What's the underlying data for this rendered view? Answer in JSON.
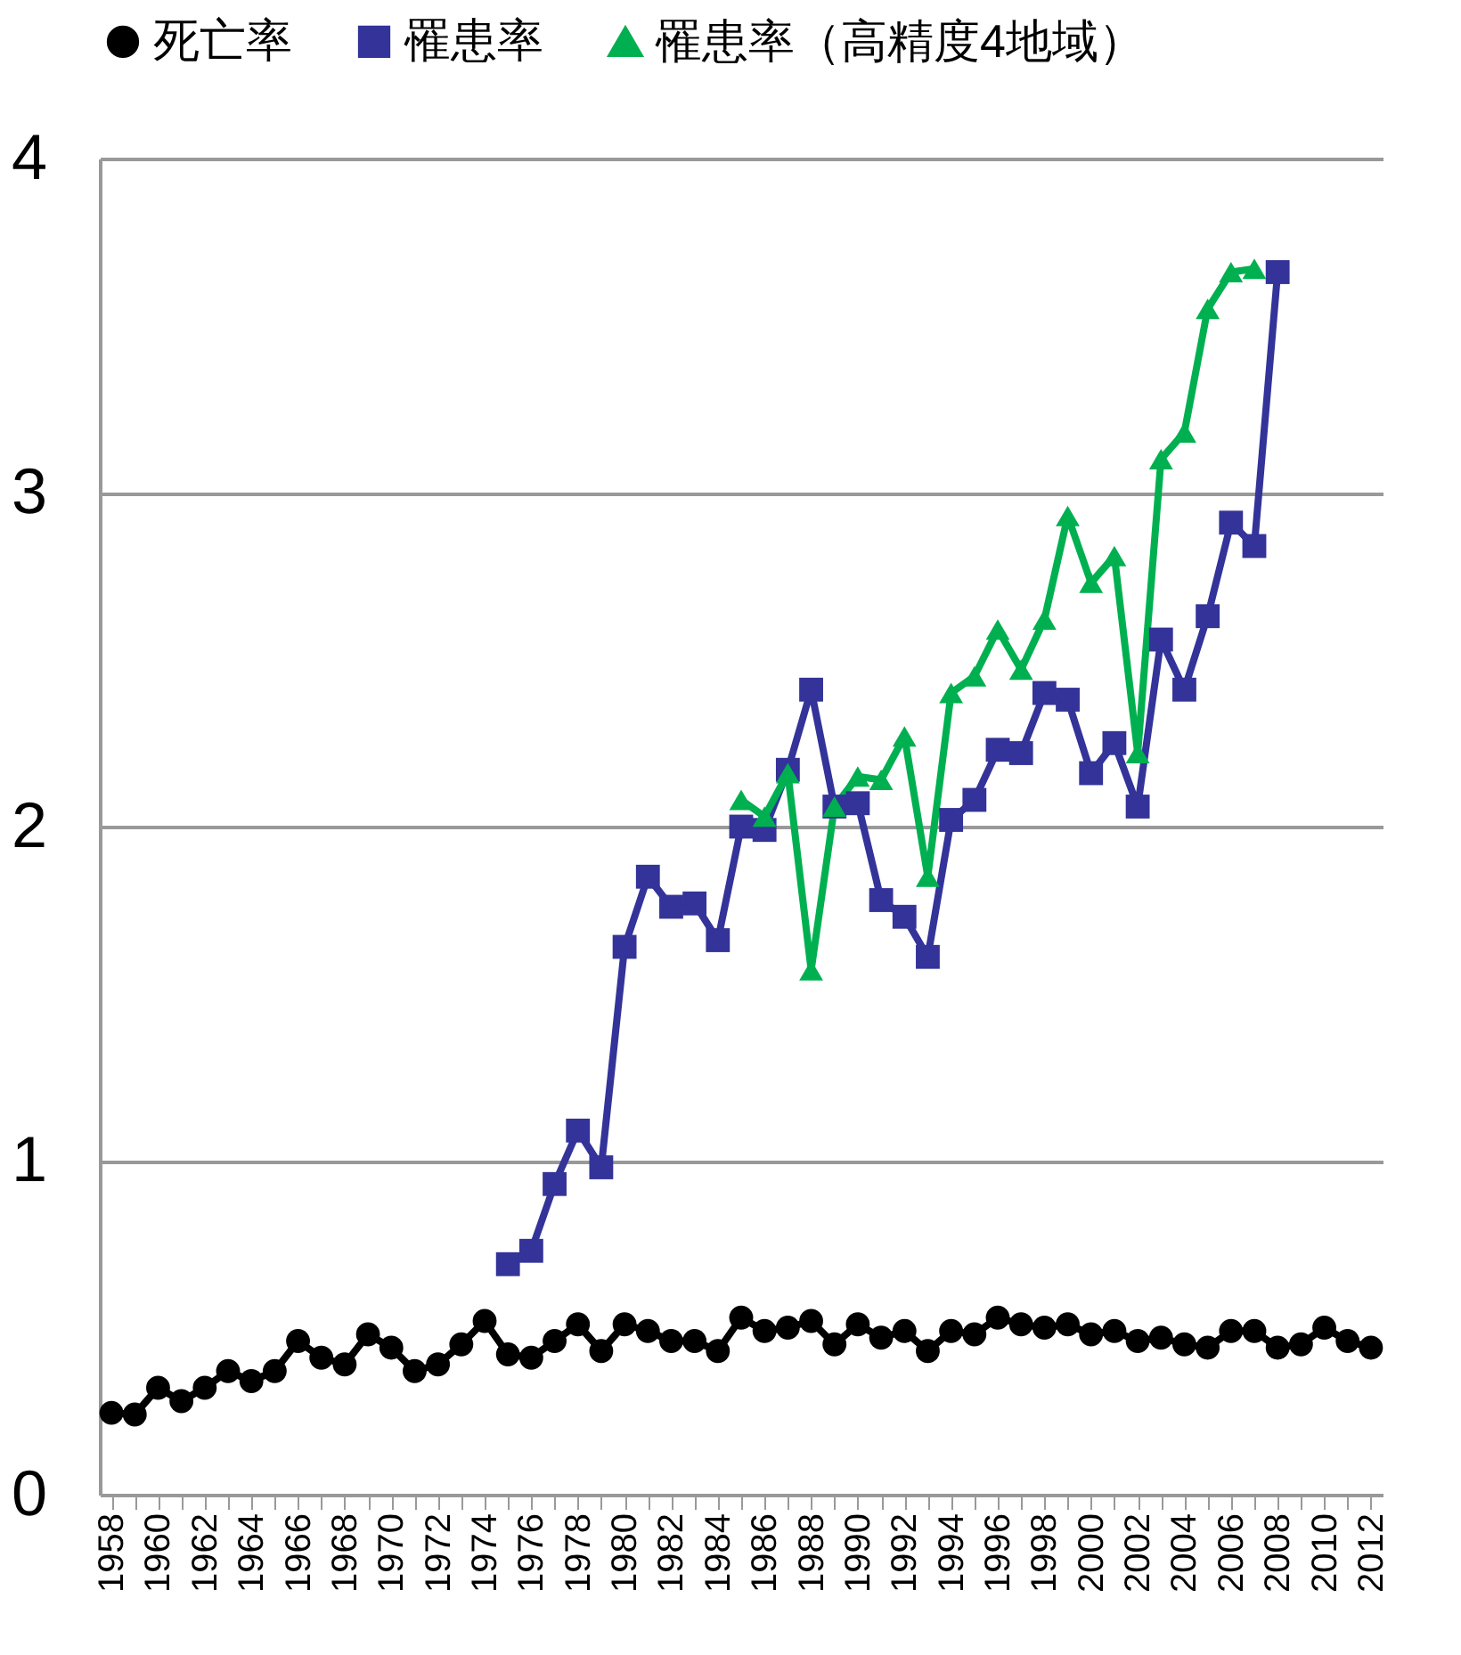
{
  "chart_data": {
    "type": "line",
    "categories": [
      "1958",
      null,
      "1960",
      null,
      "1962",
      null,
      "1964",
      null,
      "1966",
      null,
      "1968",
      null,
      "1970",
      null,
      "1972",
      null,
      "1974",
      null,
      "1976",
      null,
      "1978",
      null,
      "1980",
      null,
      "1982",
      null,
      "1984",
      null,
      "1986",
      null,
      "1988",
      null,
      "1990",
      null,
      "1992",
      null,
      "1994",
      null,
      "1996",
      null,
      "1998",
      null,
      "2000",
      null,
      "2002",
      null,
      "2004",
      null,
      "2006",
      null,
      "2008",
      null,
      "2010",
      null,
      "2012"
    ],
    "series": [
      {
        "name": "死亡率",
        "color": "#000000",
        "marker": "circle",
        "values": [
          0.245,
          0.24,
          0.32,
          0.28,
          0.32,
          0.37,
          0.34,
          0.37,
          0.46,
          0.41,
          0.39,
          0.48,
          0.44,
          0.37,
          0.39,
          0.45,
          0.52,
          0.42,
          0.41,
          0.46,
          0.51,
          0.43,
          0.51,
          0.49,
          0.46,
          0.46,
          0.43,
          0.53,
          0.49,
          0.5,
          0.52,
          0.45,
          0.51,
          0.47,
          0.49,
          0.43,
          0.49,
          0.48,
          0.53,
          0.51,
          0.5,
          0.51,
          0.48,
          0.49,
          0.46,
          0.47,
          0.45,
          0.44,
          0.49,
          0.49,
          0.44,
          0.45,
          0.5,
          0.46,
          0.44
        ]
      },
      {
        "name": "罹患率",
        "color": "#333399",
        "marker": "square",
        "values": [
          null,
          null,
          null,
          null,
          null,
          null,
          null,
          null,
          null,
          null,
          null,
          null,
          null,
          null,
          null,
          null,
          null,
          0.69,
          0.73,
          0.93,
          1.09,
          0.98,
          1.64,
          1.85,
          1.76,
          1.77,
          1.66,
          2.0,
          1.99,
          2.17,
          2.41,
          2.06,
          2.07,
          1.78,
          1.73,
          1.61,
          2.02,
          2.08,
          2.23,
          2.22,
          2.4,
          2.38,
          2.16,
          2.25,
          2.06,
          2.56,
          2.41,
          2.63,
          2.91,
          2.84,
          3.66,
          null,
          null,
          null,
          null
        ]
      },
      {
        "name": "罹患率（高精度4地域）",
        "color": "#00b050",
        "marker": "triangle",
        "values": [
          null,
          null,
          null,
          null,
          null,
          null,
          null,
          null,
          null,
          null,
          null,
          null,
          null,
          null,
          null,
          null,
          null,
          null,
          null,
          null,
          null,
          null,
          null,
          null,
          null,
          null,
          null,
          2.08,
          2.03,
          2.16,
          1.57,
          2.06,
          2.15,
          2.14,
          2.27,
          1.85,
          2.4,
          2.45,
          2.59,
          2.47,
          2.62,
          2.93,
          2.73,
          2.81,
          2.22,
          3.1,
          3.18,
          3.55,
          3.66,
          3.67,
          null,
          null,
          null,
          null,
          null
        ]
      }
    ],
    "ylim": [
      0,
      4
    ],
    "yticks": [
      0,
      1,
      2,
      3,
      4
    ],
    "grid": "y",
    "legend": "top left"
  }
}
